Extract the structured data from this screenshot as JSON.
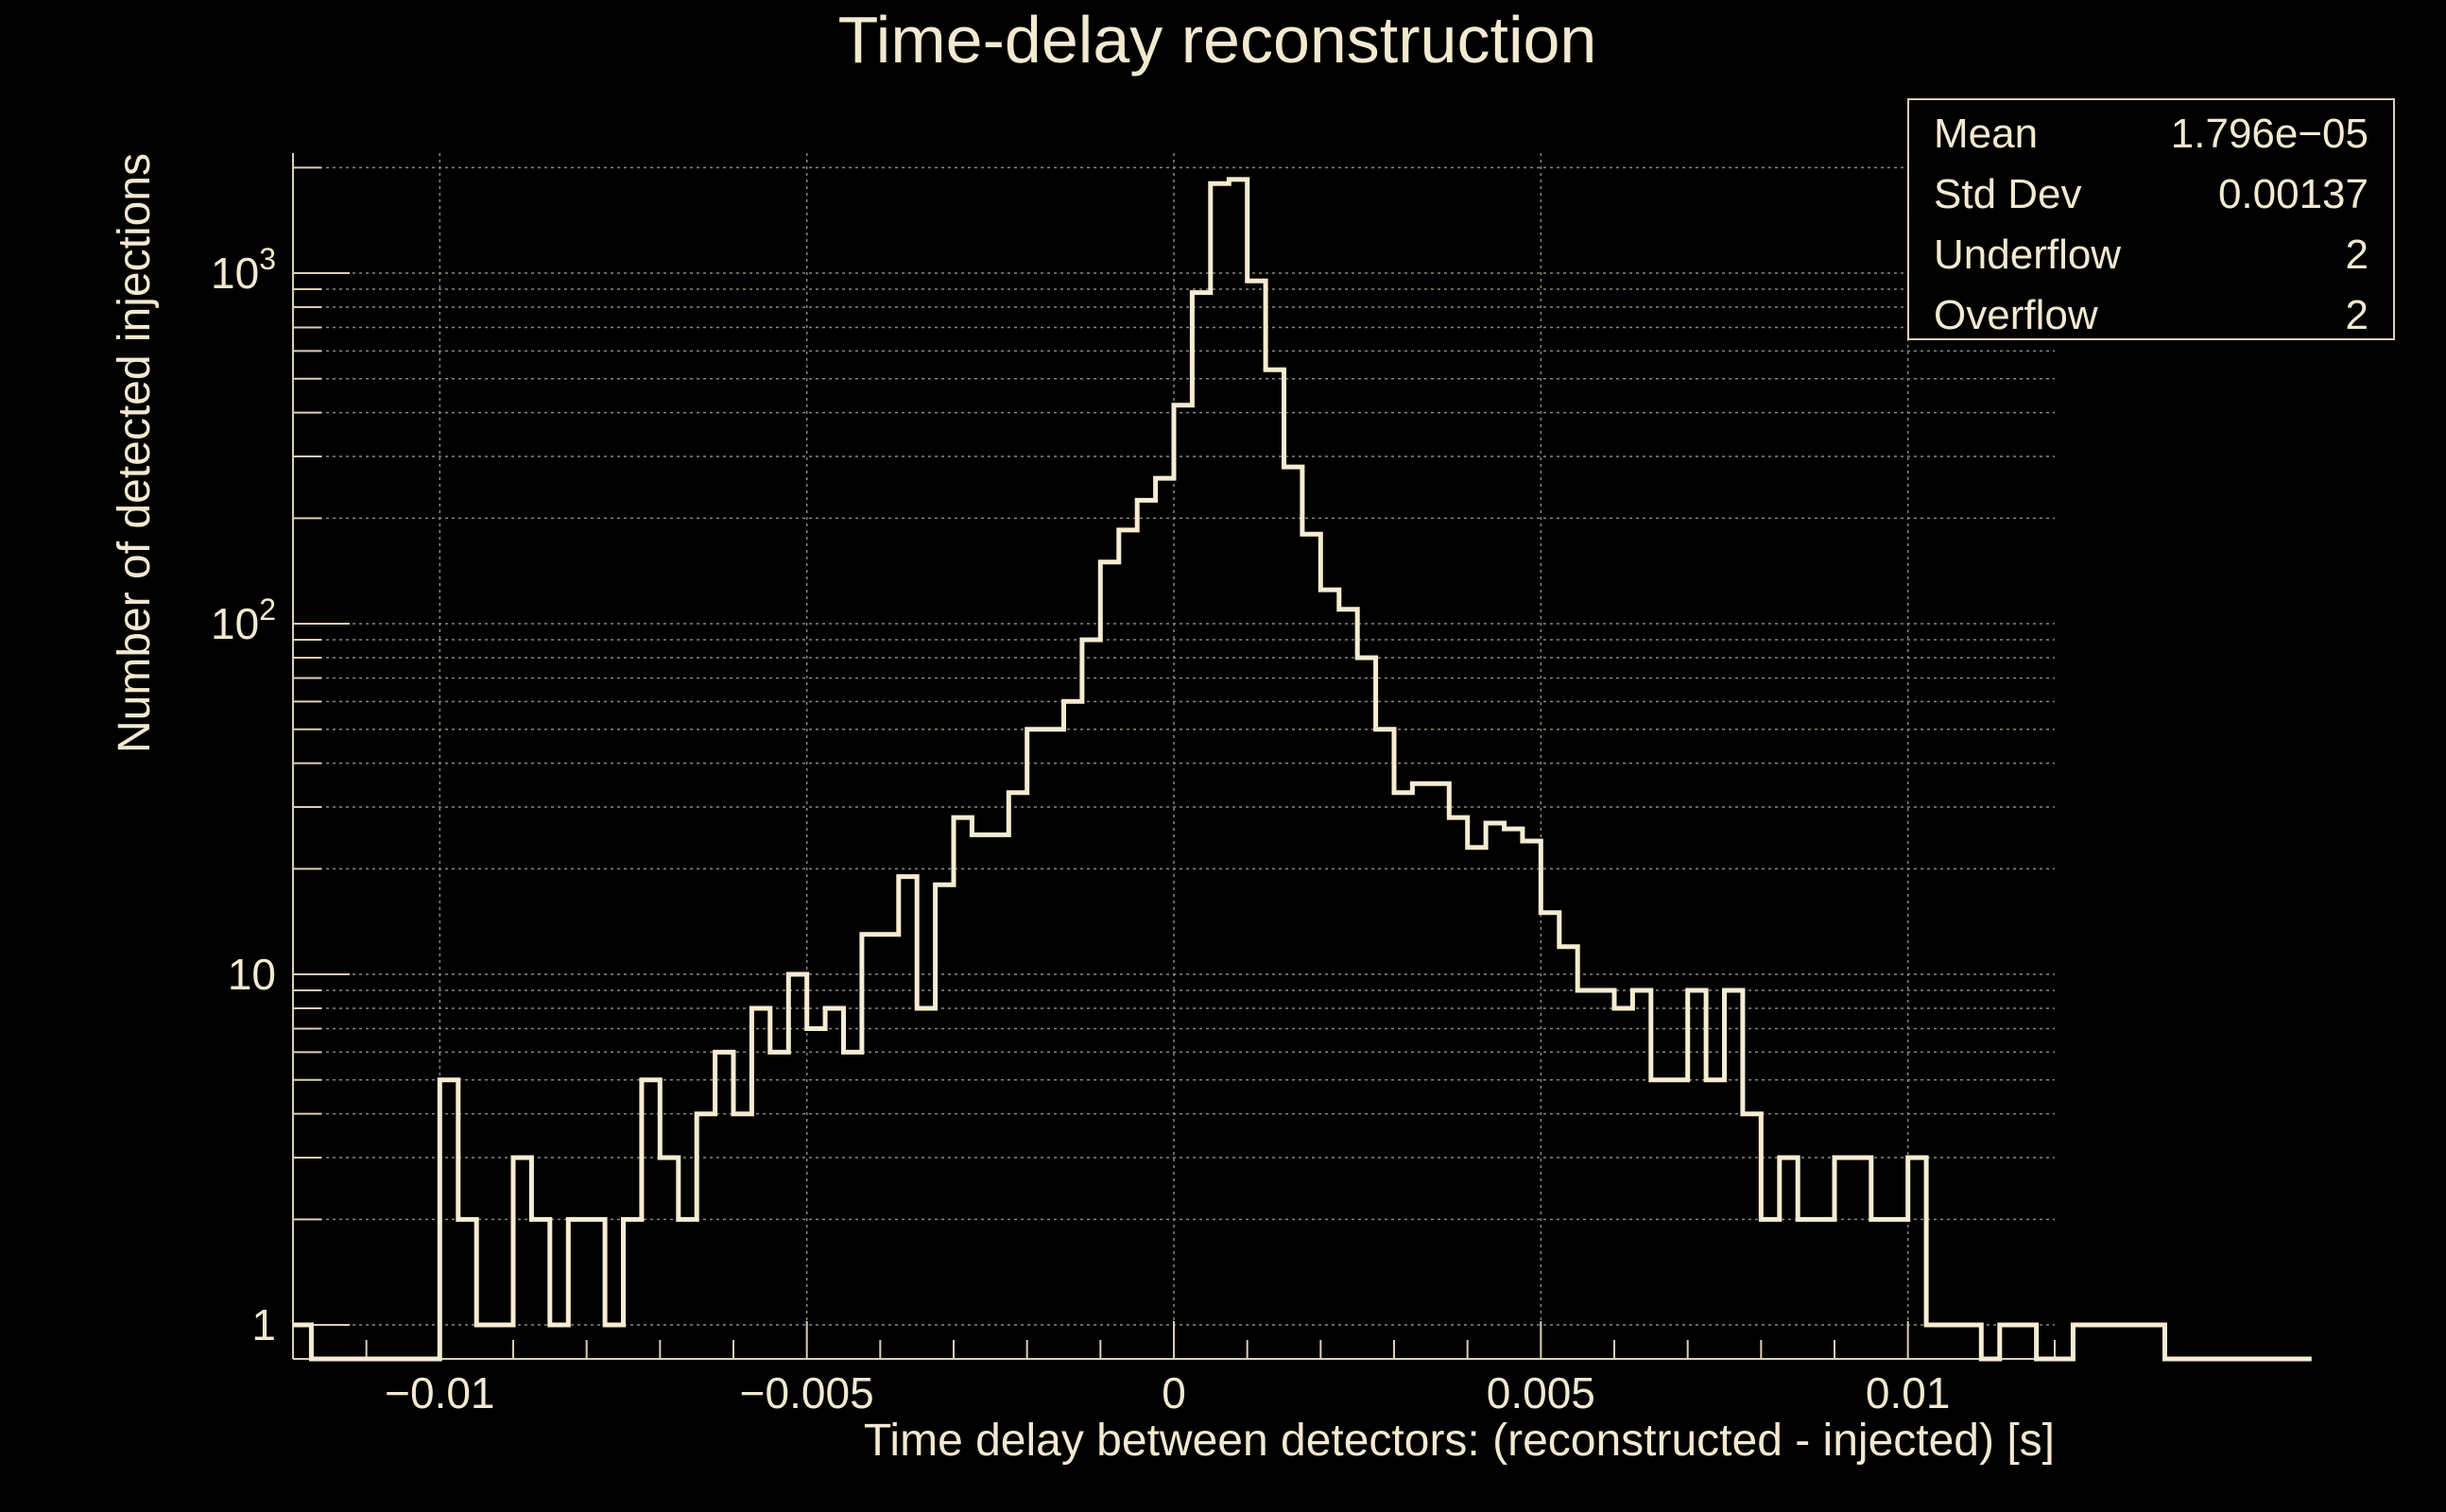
{
  "chart_data": {
    "type": "histogram",
    "title": "Time-delay reconstruction",
    "xlabel": "Time delay between detectors: (reconstructed - injected) [s]",
    "ylabel": "Number of detected injections",
    "xlim": [
      -0.012,
      0.012
    ],
    "ylim": [
      0.8,
      2200
    ],
    "yscale": "log",
    "grid": true,
    "bin_width": 0.00025,
    "x_start": -0.012,
    "x_ticks": [
      -0.01,
      -0.005,
      0,
      0.005,
      0.01
    ],
    "x_tick_labels": [
      "−0.01",
      "−0.005",
      "0",
      "0.005",
      "0.01"
    ],
    "y_ticks": [
      {
        "value": 1,
        "base": "1",
        "sup": ""
      },
      {
        "value": 10,
        "base": "10",
        "sup": ""
      },
      {
        "value": 100,
        "base": "10",
        "sup": "2"
      },
      {
        "value": 1000,
        "base": "10",
        "sup": "3"
      }
    ],
    "values": [
      1,
      0,
      0,
      0,
      0,
      0,
      0,
      0,
      5,
      2,
      1,
      1,
      3,
      2,
      1,
      2,
      2,
      1,
      2,
      5,
      3,
      2,
      4,
      6,
      4,
      8,
      6,
      10,
      7,
      8,
      6,
      13,
      13,
      19,
      8,
      18,
      28,
      25,
      25,
      33,
      50,
      50,
      60,
      90,
      150,
      185,
      225,
      260,
      420,
      880,
      1800,
      1850,
      950,
      530,
      280,
      180,
      125,
      110,
      80,
      50,
      33,
      35,
      35,
      28,
      23,
      27,
      26,
      24,
      15,
      12,
      9,
      9,
      8,
      9,
      5,
      5,
      9,
      5,
      9,
      4,
      2,
      3,
      2,
      2,
      3,
      3,
      2,
      2,
      3,
      1,
      1,
      1,
      0,
      1,
      1,
      0,
      0,
      1,
      1,
      1,
      1,
      1,
      0,
      0,
      0,
      0,
      0,
      0,
      0,
      0
    ],
    "stats": {
      "labels": [
        "Mean",
        "Std Dev",
        "Underflow",
        "Overflow"
      ],
      "values": [
        "1.796e−05",
        "0.00137",
        "2",
        "2"
      ]
    },
    "colors": {
      "background": "#000000",
      "line": "#f5ecd2",
      "grid": "#8c8878",
      "text": "#f2e9d0",
      "axis": "#d8cfb8"
    }
  }
}
